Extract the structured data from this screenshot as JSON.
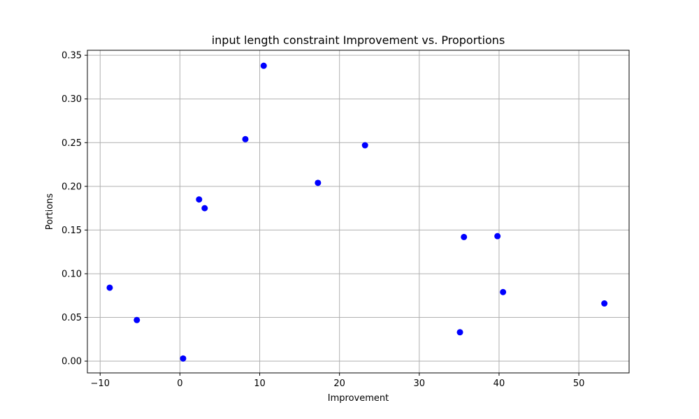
{
  "chart_data": {
    "type": "scatter",
    "title": "input length constraint Improvement vs. Proportions",
    "xlabel": "Improvement",
    "ylabel": "Portions",
    "xlim": [
      -11.6,
      56.3
    ],
    "ylim": [
      -0.0135,
      0.3557
    ],
    "grid": true,
    "marker_color": "#0000ff",
    "x_ticks": [
      "−10",
      "0",
      "10",
      "20",
      "30",
      "40",
      "50"
    ],
    "y_ticks": [
      "0.00",
      "0.05",
      "0.10",
      "0.15",
      "0.20",
      "0.25",
      "0.30",
      "0.35"
    ],
    "points": [
      {
        "x": -8.8,
        "y": 0.084
      },
      {
        "x": -5.4,
        "y": 0.047
      },
      {
        "x": 0.4,
        "y": 0.003
      },
      {
        "x": 2.4,
        "y": 0.185
      },
      {
        "x": 3.1,
        "y": 0.175
      },
      {
        "x": 8.2,
        "y": 0.254
      },
      {
        "x": 10.5,
        "y": 0.338
      },
      {
        "x": 17.3,
        "y": 0.204
      },
      {
        "x": 23.2,
        "y": 0.247
      },
      {
        "x": 35.1,
        "y": 0.033
      },
      {
        "x": 35.6,
        "y": 0.142
      },
      {
        "x": 39.8,
        "y": 0.143
      },
      {
        "x": 40.5,
        "y": 0.079
      },
      {
        "x": 53.2,
        "y": 0.066
      }
    ]
  }
}
